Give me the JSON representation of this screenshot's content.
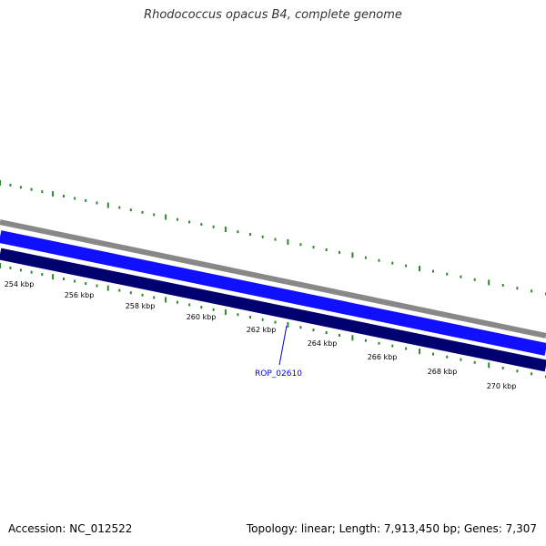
{
  "title": "Rhodococcus opacus B4, complete genome",
  "footer": {
    "accession": "Accession: NC_012522",
    "summary": "Topology: linear; Length: 7,913,450 bp; Genes: 7,307"
  },
  "colors": {
    "background": "#ffffff",
    "outer_band": "#888888",
    "plus_strand_band": "#1010ff",
    "minus_strand_band": "#00006e",
    "gene_ticks": "#2a8a2a",
    "gene_label": "#0000cc",
    "ruler_labels": "#000000"
  },
  "ruler": {
    "unit": "kbp",
    "labels": [
      "254 kbp",
      "256 kbp",
      "258 kbp",
      "260 kbp",
      "262 kbp",
      "264 kbp",
      "266 kbp",
      "268 kbp",
      "270 kbp"
    ]
  },
  "highlighted_gene": {
    "label": "ROP_02610"
  }
}
